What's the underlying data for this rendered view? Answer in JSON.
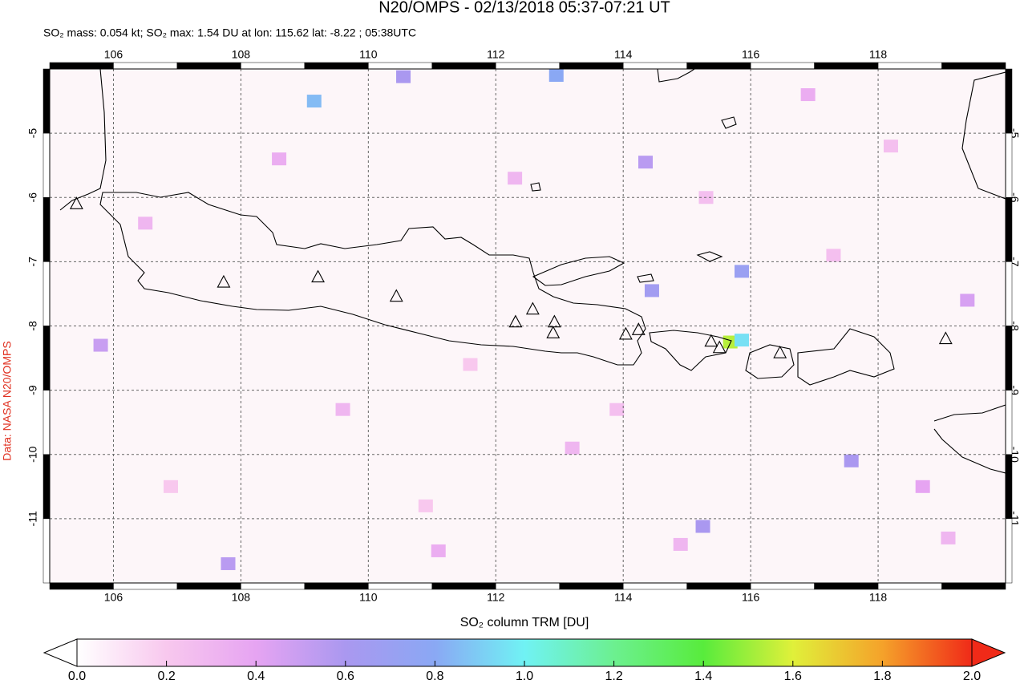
{
  "chart_data": {
    "type": "map",
    "title": "N20/OMPS - 02/13/2018 05:37-07:21 UT",
    "subtitle": "SO₂ mass: 0.054 kt; SO₂ max: 1.54 DU at lon: 115.62 lat: -8.22 ; 05:38UTC",
    "colorbar_label": "SO₂ column TRM [DU]",
    "credit": "Data: NASA N20/OMPS",
    "xlim": [
      105,
      120
    ],
    "ylim": [
      -12,
      -4
    ],
    "xticks": [
      106,
      108,
      110,
      112,
      114,
      116,
      118
    ],
    "yticks": [
      -5,
      -6,
      -7,
      -8,
      -9,
      -10,
      -11
    ],
    "grid": true,
    "colorbar_lim": [
      0,
      2
    ],
    "colorbar_ticks": [
      {
        "value": 0,
        "label": "0.0"
      },
      {
        "value": 0.2,
        "label": "0.2"
      },
      {
        "value": 0.4,
        "label": "0.4"
      },
      {
        "value": 0.6,
        "label": "0.6"
      },
      {
        "value": 0.8,
        "label": "0.8"
      },
      {
        "value": 1,
        "label": "1.0"
      },
      {
        "value": 1.2,
        "label": "1.2"
      },
      {
        "value": 1.4,
        "label": "1.4"
      },
      {
        "value": 1.6,
        "label": "1.6"
      },
      {
        "value": 1.8,
        "label": "1.8"
      },
      {
        "value": 2,
        "label": "2.0"
      }
    ],
    "colormap": [
      "#ffffff",
      "#f8c8ee",
      "#e6a4f2",
      "#aa98f0",
      "#8aa8f4",
      "#70f2f4",
      "#6cf090",
      "#58ec3c",
      "#e0f03a",
      "#f5a22a",
      "#f02a18"
    ],
    "pixels": {
      "lon": [
        115.68,
        115.86,
        115.86,
        114.45,
        109.15,
        112.95,
        110.55,
        117.58,
        115.25,
        105.8,
        114.35,
        119.4,
        118.7,
        111.1,
        109.6,
        106.5,
        107.8,
        113.2,
        116.9,
        112.3,
        117.3,
        118.2,
        110.9,
        108.6,
        113.9,
        119.1,
        106.9,
        115.3,
        114.9,
        111.6
      ],
      "lat": [
        -8.25,
        -8.22,
        -7.15,
        -7.45,
        -4.5,
        -4.1,
        -4.12,
        -10.1,
        -11.12,
        -8.3,
        -5.45,
        -7.6,
        -10.5,
        -11.5,
        -9.3,
        -6.4,
        -11.7,
        -9.9,
        -4.4,
        -5.7,
        -6.9,
        -5.2,
        -10.8,
        -5.4,
        -9.3,
        -11.3,
        -10.5,
        -6.0,
        -11.4,
        -8.6
      ],
      "values": [
        1.54,
        0.95,
        0.7,
        0.65,
        0.85,
        0.8,
        0.6,
        0.6,
        0.6,
        0.5,
        0.55,
        0.45,
        0.4,
        0.35,
        0.3,
        0.3,
        0.55,
        0.3,
        0.35,
        0.3,
        0.25,
        0.25,
        0.2,
        0.35,
        0.25,
        0.3,
        0.2,
        0.25,
        0.3,
        0.2
      ]
    },
    "volcanoes": {
      "lon": [
        105.42,
        107.73,
        109.21,
        110.44,
        112.31,
        112.58,
        112.92,
        112.9,
        114.04,
        114.24,
        115.38,
        115.51,
        116.46,
        119.06
      ],
      "lat": [
        -6.1,
        -7.32,
        -7.24,
        -7.54,
        -7.94,
        -7.74,
        -7.94,
        -8.11,
        -8.13,
        -8.06,
        -8.24,
        -8.34,
        -8.42,
        -8.2
      ]
    }
  }
}
